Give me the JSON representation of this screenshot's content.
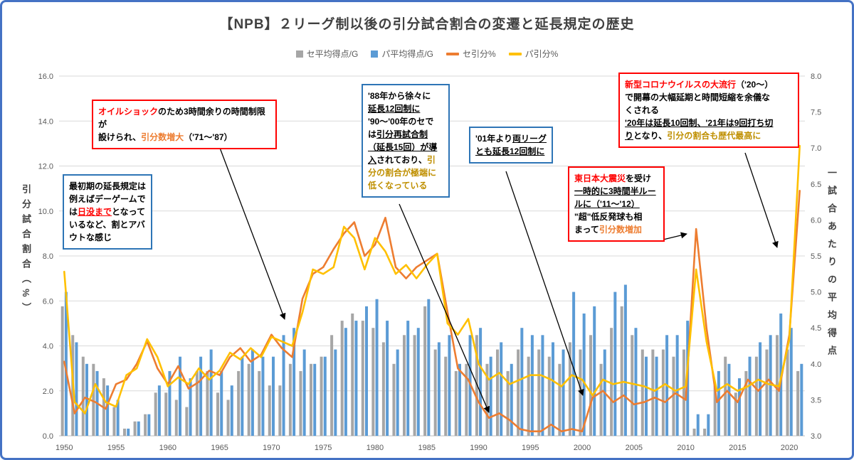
{
  "title": "【NPB】２リーグ制以後の引分試合割合の変遷と延長規定の歴史",
  "legend": [
    {
      "label": "セ平均得点/G",
      "type": "bar",
      "color": "#a6a6a6"
    },
    {
      "label": "パ平均得点/G",
      "type": "bar",
      "color": "#5b9bd5"
    },
    {
      "label": "セ引分%",
      "type": "line",
      "color": "#ed7d31"
    },
    {
      "label": "パ引分%",
      "type": "line",
      "color": "#ffc000"
    }
  ],
  "left_axis": {
    "title": "引分試合割合（%）",
    "min": 0,
    "max": 16,
    "step": 2,
    "ticks": [
      "16.0",
      "14.0",
      "12.0",
      "10.0",
      "8.0",
      "6.0",
      "4.0",
      "2.0",
      "0.0"
    ]
  },
  "right_axis": {
    "title": "一試合あたりの平均得点",
    "min": 3,
    "max": 8,
    "step": 0.5,
    "ticks": [
      "8.0",
      "7.5",
      "7.0",
      "6.5",
      "6.0",
      "5.5",
      "5.0",
      "4.5",
      "4.0",
      "3.5",
      "3.0"
    ]
  },
  "x_axis": {
    "tick_years": [
      1950,
      1955,
      1960,
      1965,
      1970,
      1975,
      1980,
      1985,
      1990,
      1995,
      2000,
      2005,
      2010,
      2015,
      2020
    ]
  },
  "chart_data": {
    "type": "combo",
    "left_ylim": [
      0,
      16
    ],
    "right_ylim": [
      3,
      8
    ],
    "grid": true,
    "x": [
      1950,
      1951,
      1952,
      1953,
      1954,
      1955,
      1956,
      1957,
      1958,
      1959,
      1960,
      1961,
      1962,
      1963,
      1964,
      1965,
      1966,
      1967,
      1968,
      1969,
      1970,
      1971,
      1972,
      1973,
      1974,
      1975,
      1976,
      1977,
      1978,
      1979,
      1980,
      1981,
      1982,
      1983,
      1984,
      1985,
      1986,
      1987,
      1988,
      1989,
      1990,
      1991,
      1992,
      1993,
      1994,
      1995,
      1996,
      1997,
      1998,
      1999,
      2000,
      2001,
      2002,
      2003,
      2004,
      2005,
      2006,
      2007,
      2008,
      2009,
      2010,
      2011,
      2012,
      2013,
      2014,
      2015,
      2016,
      2017,
      2018,
      2019,
      2020,
      2021
    ],
    "series": [
      {
        "name": "セ平均得点/G",
        "type": "bar",
        "axis": "right",
        "color": "#a6a6a6",
        "values": [
          4.8,
          4.4,
          4.1,
          4.0,
          3.8,
          3.4,
          3.1,
          3.2,
          3.3,
          3.6,
          3.6,
          3.5,
          3.4,
          3.9,
          3.9,
          3.6,
          3.5,
          3.9,
          4.0,
          3.9,
          3.7,
          3.7,
          4.0,
          3.9,
          4.0,
          4.1,
          4.4,
          4.6,
          4.7,
          4.6,
          4.5,
          4.3,
          4.0,
          4.4,
          4.4,
          4.8,
          4.2,
          4.1,
          3.9,
          4.0,
          4.4,
          4.0,
          4.2,
          3.9,
          4.2,
          4.1,
          4.2,
          4.1,
          4.0,
          4.3,
          4.2,
          4.4,
          4.0,
          4.5,
          4.8,
          4.4,
          4.2,
          4.2,
          4.2,
          4.1,
          4.2,
          3.1,
          3.1,
          3.7,
          4.1,
          3.6,
          3.9,
          4.1,
          4.2,
          4.4,
          4.2,
          3.9
        ]
      },
      {
        "name": "パ平均得点/G",
        "type": "bar",
        "axis": "right",
        "color": "#5b9bd5",
        "values": [
          5.0,
          4.3,
          4.0,
          3.9,
          3.7,
          3.5,
          3.1,
          3.2,
          3.3,
          3.7,
          3.9,
          4.1,
          3.8,
          4.1,
          4.2,
          3.9,
          3.7,
          4.1,
          4.2,
          4.1,
          4.1,
          4.4,
          4.5,
          4.2,
          4.0,
          4.1,
          4.2,
          4.5,
          4.6,
          4.8,
          4.9,
          4.6,
          4.2,
          4.6,
          4.5,
          4.9,
          4.3,
          4.4,
          4.0,
          4.4,
          4.5,
          4.1,
          4.3,
          4.0,
          4.5,
          4.4,
          4.4,
          4.3,
          4.2,
          5.0,
          4.7,
          4.8,
          4.2,
          5.0,
          5.1,
          4.5,
          4.1,
          4.1,
          4.4,
          4.4,
          4.6,
          3.3,
          3.3,
          3.9,
          4.0,
          3.8,
          4.1,
          4.3,
          4.4,
          4.7,
          4.5,
          4.0
        ]
      },
      {
        "name": "セ引分%",
        "type": "line",
        "axis": "left",
        "color": "#ed7d31",
        "values": [
          3.3,
          1.0,
          1.7,
          1.5,
          1.2,
          2.3,
          2.5,
          3.2,
          4.2,
          3.0,
          2.3,
          3.1,
          2.1,
          2.4,
          2.9,
          2.7,
          3.5,
          3.9,
          3.3,
          3.6,
          4.5,
          3.9,
          3.5,
          6.1,
          7.2,
          7.5,
          8.3,
          9.0,
          9.5,
          8.0,
          8.5,
          9.7,
          7.5,
          7.0,
          7.5,
          7.8,
          8.1,
          5.5,
          3.0,
          2.5,
          1.5,
          0.8,
          1.0,
          0.7,
          0.3,
          0.2,
          0.2,
          0.5,
          0.2,
          0.3,
          0.2,
          1.7,
          2.0,
          1.5,
          1.8,
          1.4,
          1.5,
          1.7,
          1.5,
          1.9,
          1.6,
          9.2,
          4.8,
          1.5,
          2.0,
          1.5,
          2.5,
          2.0,
          2.5,
          2.0,
          4.5,
          10.9
        ]
      },
      {
        "name": "パ引分%",
        "type": "line",
        "axis": "left",
        "color": "#ffc000",
        "values": [
          7.3,
          1.5,
          1.0,
          2.3,
          1.5,
          1.3,
          2.7,
          3.0,
          4.3,
          3.5,
          2.2,
          2.6,
          2.3,
          3.0,
          2.5,
          2.9,
          3.7,
          3.4,
          3.9,
          3.5,
          4.4,
          4.2,
          4.0,
          5.5,
          7.4,
          7.2,
          7.5,
          9.3,
          8.8,
          7.4,
          8.8,
          8.2,
          7.2,
          7.6,
          7.0,
          7.6,
          8.1,
          5.0,
          4.5,
          5.2,
          3.2,
          2.5,
          2.8,
          2.3,
          2.5,
          2.7,
          2.7,
          2.5,
          2.2,
          2.7,
          2.5,
          1.8,
          2.5,
          2.3,
          2.4,
          2.3,
          2.2,
          2.0,
          2.3,
          2.0,
          2.2,
          7.4,
          4.2,
          2.0,
          2.3,
          2.0,
          2.2,
          2.5,
          2.3,
          2.2,
          4.3,
          12.9
        ]
      }
    ]
  },
  "annotations": [
    {
      "border": "blue",
      "segments": [
        {
          "t": "最初期の延長規定は\n例えばデーゲームで\nは"
        },
        {
          "t": "日没まで",
          "c": "red",
          "u": true
        },
        {
          "t": "となって\nいるなど、割とアバ\nウトな感じ"
        }
      ]
    },
    {
      "border": "red",
      "segments": [
        {
          "t": "オイルショック",
          "c": "red"
        },
        {
          "t": "のため3時間余りの時間制限が\n設けられ、"
        },
        {
          "t": "引分数増大",
          "c": "orange"
        },
        {
          "t": "（'71～'87）"
        }
      ]
    },
    {
      "border": "blue",
      "segments": [
        {
          "t": "'88年から徐々に\n"
        },
        {
          "t": "延長12回制に",
          "u": true
        },
        {
          "t": "\n'90～'00年のセで\nは"
        },
        {
          "t": "引分再試合制\n（延長15回）が導\n入",
          "u": true
        },
        {
          "t": "されており、"
        },
        {
          "t": "引\n分の割合が極端に\n低くなっている",
          "c": "gold"
        }
      ]
    },
    {
      "border": "blue",
      "segments": [
        {
          "t": "'01年より"
        },
        {
          "t": "両リーグ\nとも延長12回制に",
          "u": true
        }
      ]
    },
    {
      "border": "red",
      "segments": [
        {
          "t": "東日本大震災",
          "c": "red"
        },
        {
          "t": "を受け\n"
        },
        {
          "t": "一時的に3時間半ルー\nルに（'11～'12）",
          "u": true
        },
        {
          "t": "\n\"超\"低反発球も相\nまって"
        },
        {
          "t": "引分数増加",
          "c": "orange"
        }
      ]
    },
    {
      "border": "red",
      "segments": [
        {
          "t": "新型コロナウイルスの大流行",
          "c": "red"
        },
        {
          "t": "（'20～）\nで開幕の大幅延期と時間短縮を余儀な\nくされる\n"
        },
        {
          "t": "'20年は延長10回制、'21年は9回打ち切\nり",
          "u": true
        },
        {
          "t": "となり、"
        },
        {
          "t": "引分の割合も歴代最高に",
          "c": "gold"
        }
      ]
    }
  ]
}
